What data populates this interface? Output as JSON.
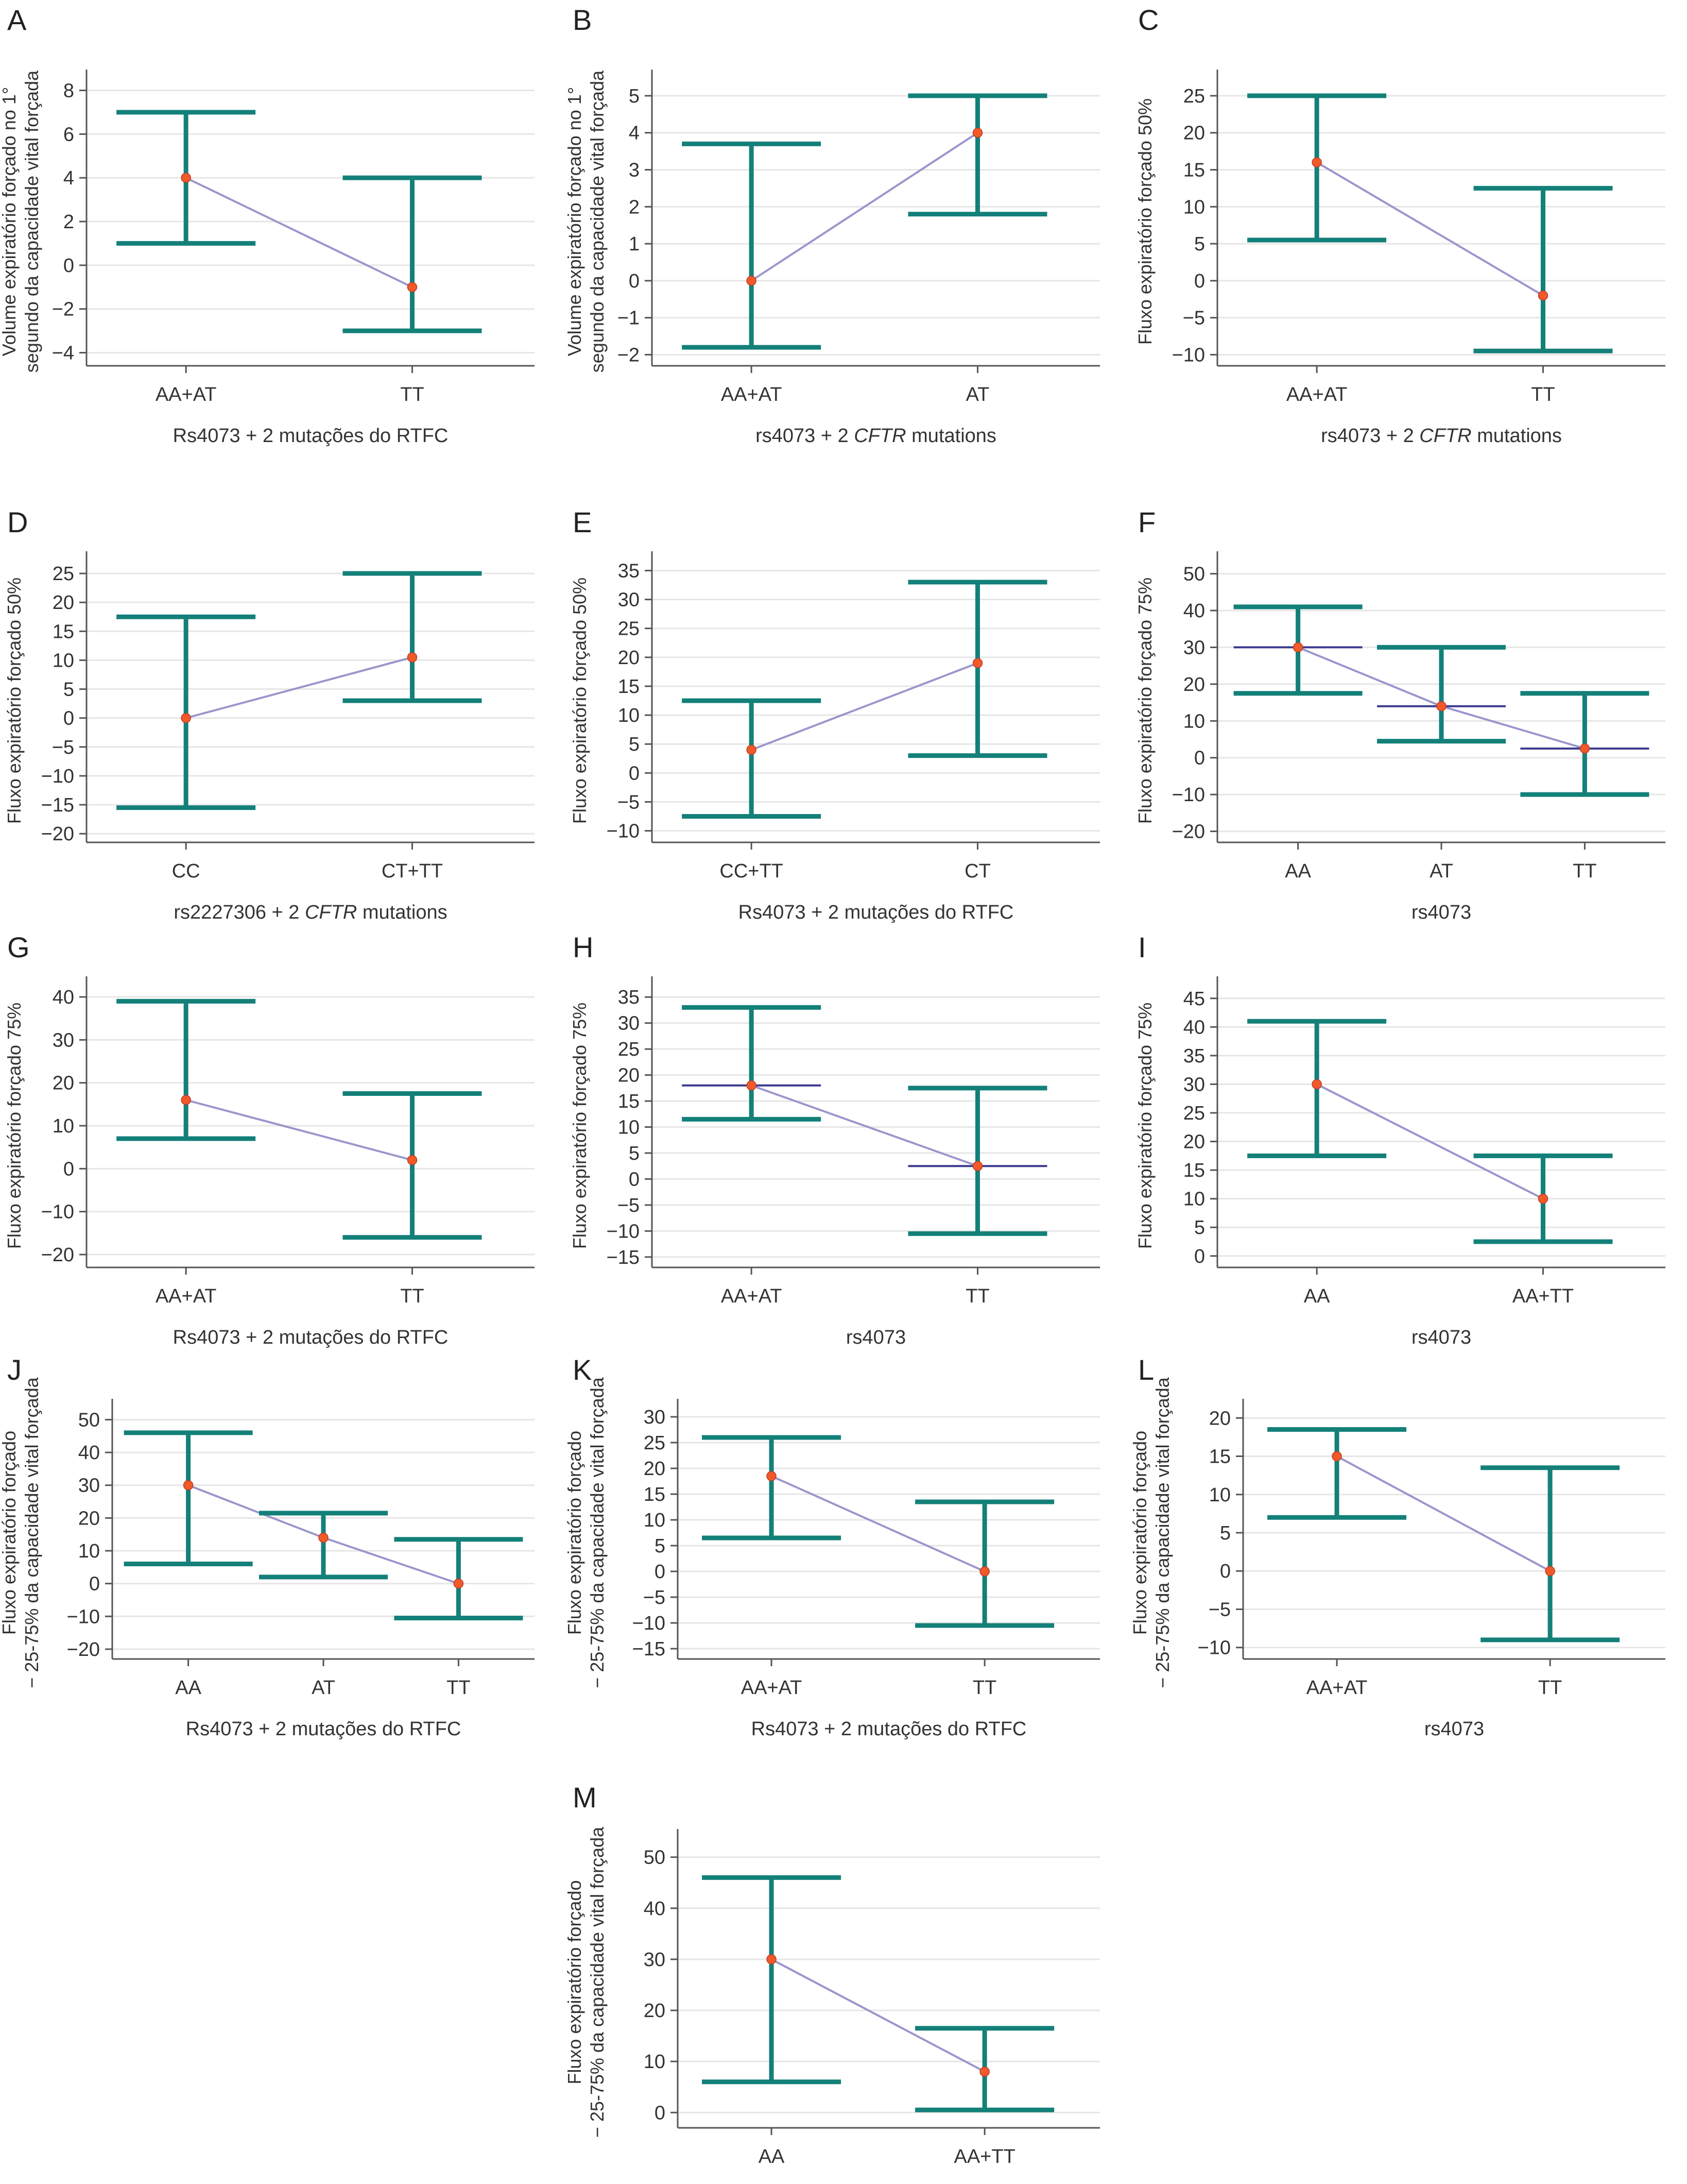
{
  "colors": {
    "errorbar": "#138079",
    "mean_point": "#f05a28",
    "connector": "#9b96cc",
    "median_line": "#3b3a8f",
    "grid": "#e6e6e6",
    "axis": "#555555"
  },
  "chart_data": [
    {
      "panel": "A",
      "type": "error_bar",
      "ylabel": [
        "Volume expiratório forçado no 1°",
        "segundo da capacidade vital forçada"
      ],
      "xlabel": [
        {
          "text": "Rs4073 + 2 mutações do RTFC"
        }
      ],
      "categories": [
        "AA+AT",
        "TT"
      ],
      "mean": [
        4,
        -1
      ],
      "lower": [
        1,
        -3
      ],
      "upper": [
        7,
        4
      ],
      "yticks": [
        -4,
        -2,
        0,
        2,
        4,
        6,
        8
      ],
      "ylim": [
        -4.6,
        8.6
      ],
      "grid": true
    },
    {
      "panel": "B",
      "type": "error_bar",
      "ylabel": [
        "Volume expiratório forçado no 1°",
        "segundo da capacidade vital forçada"
      ],
      "xlabel": [
        {
          "text": "rs4073 + 2 "
        },
        {
          "text": "CFTR",
          "italic": true
        },
        {
          "text": " mutations"
        }
      ],
      "categories": [
        "AA+AT",
        "AT"
      ],
      "mean": [
        0,
        4
      ],
      "lower": [
        -1.8,
        1.8
      ],
      "upper": [
        3.7,
        5
      ],
      "yticks": [
        -2,
        -1,
        0,
        1,
        2,
        3,
        4,
        5
      ],
      "ylim": [
        -2.3,
        5.5
      ],
      "grid": true
    },
    {
      "panel": "C",
      "type": "error_bar",
      "ylabel": [
        "Fluxo expiratório forçado 50%"
      ],
      "xlabel": [
        {
          "text": "rs4073 + 2 "
        },
        {
          "text": "CFTR",
          "italic": true
        },
        {
          "text": " mutations"
        }
      ],
      "categories": [
        "AA+AT",
        "TT"
      ],
      "mean": [
        16,
        -2
      ],
      "lower": [
        5.5,
        -9.5
      ],
      "upper": [
        25,
        12.5
      ],
      "yticks": [
        -10,
        -5,
        0,
        5,
        10,
        15,
        20,
        25
      ],
      "ylim": [
        -11.5,
        27.5
      ],
      "grid": true
    },
    {
      "panel": "D",
      "type": "error_bar",
      "ylabel": [
        "Fluxo expiratório forçado 50%"
      ],
      "xlabel": [
        {
          "text": "rs2227306 + 2 "
        },
        {
          "text": "CFTR",
          "italic": true
        },
        {
          "text": " mutations"
        }
      ],
      "categories": [
        "CC",
        "CT+TT"
      ],
      "mean": [
        0,
        10.5
      ],
      "lower": [
        -15.5,
        3
      ],
      "upper": [
        17.5,
        25
      ],
      "yticks": [
        -20,
        -15,
        -10,
        -5,
        0,
        5,
        10,
        15,
        20,
        25
      ],
      "ylim": [
        -21.5,
        27.5
      ],
      "grid": true
    },
    {
      "panel": "E",
      "type": "error_bar",
      "ylabel": [
        "Fluxo expiratório forçado 50%"
      ],
      "xlabel": [
        {
          "text": "Rs4073 + 2 mutações do RTFC"
        }
      ],
      "categories": [
        "CC+TT",
        "CT"
      ],
      "mean": [
        4,
        19
      ],
      "lower": [
        -7.5,
        3
      ],
      "upper": [
        12.5,
        33
      ],
      "yticks": [
        -10,
        -5,
        0,
        5,
        10,
        15,
        20,
        25,
        30,
        35
      ],
      "ylim": [
        -12,
        37
      ],
      "grid": true
    },
    {
      "panel": "F",
      "type": "error_bar",
      "ylabel": [
        "Fluxo expiratório forçado 75%"
      ],
      "xlabel": [
        {
          "text": "rs4073"
        }
      ],
      "categories": [
        "AA",
        "AT",
        "TT"
      ],
      "mean": [
        30,
        14,
        2.5
      ],
      "lower": [
        17.5,
        4.5,
        -10
      ],
      "upper": [
        41,
        30,
        17.5
      ],
      "median": [
        30,
        14,
        2.5
      ],
      "yticks": [
        -20,
        -10,
        0,
        10,
        20,
        30,
        40,
        50
      ],
      "ylim": [
        -23,
        54
      ],
      "grid": true
    },
    {
      "panel": "G",
      "type": "error_bar",
      "ylabel": [
        "Fluxo expiratório forçado 75%"
      ],
      "xlabel": [
        {
          "text": "Rs4073 + 2 mutações do RTFC"
        }
      ],
      "categories": [
        "AA+AT",
        "TT"
      ],
      "mean": [
        16,
        2
      ],
      "lower": [
        7,
        -16
      ],
      "upper": [
        39,
        17.5
      ],
      "yticks": [
        -20,
        -10,
        0,
        10,
        20,
        30,
        40
      ],
      "ylim": [
        -23,
        43
      ],
      "grid": true
    },
    {
      "panel": "H",
      "type": "error_bar",
      "ylabel": [
        "Fluxo expiratório forçado 75%"
      ],
      "xlabel": [
        {
          "text": "rs4073"
        }
      ],
      "categories": [
        "AA+AT",
        "TT"
      ],
      "mean": [
        18,
        2.5
      ],
      "lower": [
        11.5,
        -10.5
      ],
      "upper": [
        33,
        17.5
      ],
      "median": [
        18,
        2.5
      ],
      "yticks": [
        -15,
        -10,
        -5,
        0,
        5,
        10,
        15,
        20,
        25,
        30,
        35
      ],
      "ylim": [
        -17,
        37.5
      ],
      "grid": true
    },
    {
      "panel": "I",
      "type": "error_bar",
      "ylabel": [
        "Fluxo expiratório forçado 75%"
      ],
      "xlabel": [
        {
          "text": "rs4073"
        }
      ],
      "categories": [
        "AA",
        "AA+TT"
      ],
      "mean": [
        30,
        10
      ],
      "lower": [
        17.5,
        2.5
      ],
      "upper": [
        41,
        17.5
      ],
      "yticks": [
        0,
        5,
        10,
        15,
        20,
        25,
        30,
        35,
        40,
        45
      ],
      "ylim": [
        -2,
        47.5
      ],
      "grid": true
    },
    {
      "panel": "J",
      "type": "error_bar",
      "ylabel": [
        "Fluxo expiratório forçado",
        "− 25-75% da capacidade vital forçada"
      ],
      "xlabel": [
        {
          "text": "Rs4073 + 2 mutações do RTFC"
        }
      ],
      "categories": [
        "AA",
        "AT",
        "TT"
      ],
      "mean": [
        30,
        14,
        0
      ],
      "lower": [
        6,
        2,
        -10.5
      ],
      "upper": [
        46,
        21.5,
        13.5
      ],
      "yticks": [
        -20,
        -10,
        0,
        10,
        20,
        30,
        40,
        50
      ],
      "ylim": [
        -23,
        54
      ],
      "grid": true
    },
    {
      "panel": "K",
      "type": "error_bar",
      "ylabel": [
        "Fluxo expiratório forçado",
        "− 25-75% da capacidade vital forçada"
      ],
      "xlabel": [
        {
          "text": "Rs4073 + 2 mutações do RTFC"
        }
      ],
      "categories": [
        "AA+AT",
        "TT"
      ],
      "mean": [
        18.5,
        0
      ],
      "lower": [
        6.5,
        -10.5
      ],
      "upper": [
        26,
        13.5
      ],
      "yticks": [
        -15,
        -10,
        -5,
        0,
        5,
        10,
        15,
        20,
        25,
        30
      ],
      "ylim": [
        -17,
        32
      ],
      "grid": true
    },
    {
      "panel": "L",
      "type": "error_bar",
      "ylabel": [
        "Fluxo expiratório forçado",
        "− 25-75% da capacidade vital forçada"
      ],
      "xlabel": [
        {
          "text": "rs4073"
        }
      ],
      "categories": [
        "AA+AT",
        "TT"
      ],
      "mean": [
        15,
        0
      ],
      "lower": [
        7,
        -9
      ],
      "upper": [
        18.5,
        13.5
      ],
      "yticks": [
        -10,
        -5,
        0,
        5,
        10,
        15,
        20
      ],
      "ylim": [
        -11.5,
        21.5
      ],
      "grid": true
    },
    {
      "panel": "M",
      "type": "error_bar",
      "ylabel": [
        "Fluxo expiratório forçado",
        "− 25-75% da capacidade vital forçada"
      ],
      "xlabel": [
        {
          "text": "Rs4073 + 2 mutações do RTFC"
        }
      ],
      "categories": [
        "AA",
        "AA+TT"
      ],
      "mean": [
        30,
        8
      ],
      "lower": [
        6,
        0.5
      ],
      "upper": [
        46,
        16.5
      ],
      "yticks": [
        0,
        10,
        20,
        30,
        40,
        50
      ],
      "ylim": [
        -3,
        54
      ],
      "grid": true
    }
  ]
}
